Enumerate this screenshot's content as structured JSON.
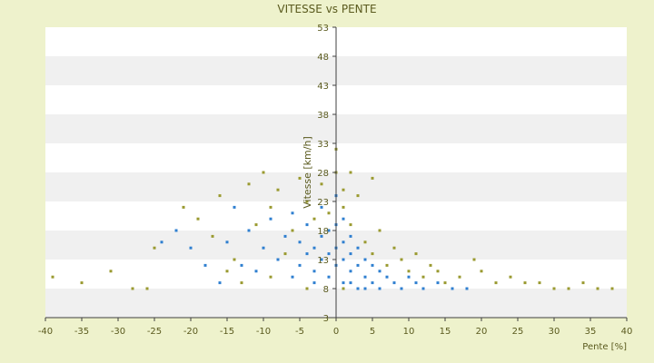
{
  "chart_data": {
    "type": "scatter",
    "title": "VITESSE vs PENTE",
    "xlabel": "Pente [%]",
    "ylabel": "Vitesse [km/h]",
    "xlim": [
      -40,
      40
    ],
    "ylim": [
      3,
      53
    ],
    "x_ticks": [
      "-40",
      "-35",
      "-30",
      "-25",
      "-20",
      "-15",
      "-10",
      "-5",
      "0",
      "5",
      "10",
      "15",
      "20",
      "25",
      "30",
      "35",
      "40"
    ],
    "y_ticks": [
      "3",
      "8",
      "13",
      "18",
      "23",
      "28",
      "33",
      "38",
      "43",
      "48",
      "53"
    ],
    "grid": "horizontal alternating bands",
    "colors": {
      "background": "#eef2cc",
      "plot_band_light": "#ffffff",
      "plot_band_dark": "#f0f0f0",
      "axis": "#404040",
      "series_a": "#2f7fd0",
      "series_b": "#9a9a30"
    },
    "series": [
      {
        "values": [
          [
            -15,
            16
          ],
          [
            -14,
            22
          ],
          [
            -12,
            18
          ],
          [
            -10,
            15
          ],
          [
            -9,
            20
          ],
          [
            -8,
            13
          ],
          [
            -7,
            17
          ],
          [
            -6,
            21
          ],
          [
            -5,
            12
          ],
          [
            -5,
            16
          ],
          [
            -4,
            14
          ],
          [
            -4,
            19
          ],
          [
            -3,
            11
          ],
          [
            -3,
            15
          ],
          [
            -2,
            13
          ],
          [
            -2,
            17
          ],
          [
            -2,
            22
          ],
          [
            -1,
            10
          ],
          [
            -1,
            14
          ],
          [
            -1,
            18
          ],
          [
            0,
            12
          ],
          [
            0,
            15
          ],
          [
            0,
            19
          ],
          [
            0,
            24
          ],
          [
            1,
            9
          ],
          [
            1,
            13
          ],
          [
            1,
            16
          ],
          [
            1,
            20
          ],
          [
            2,
            11
          ],
          [
            2,
            14
          ],
          [
            2,
            17
          ],
          [
            3,
            8
          ],
          [
            3,
            12
          ],
          [
            3,
            15
          ],
          [
            4,
            10
          ],
          [
            4,
            13
          ],
          [
            5,
            9
          ],
          [
            5,
            12
          ],
          [
            6,
            8
          ],
          [
            6,
            11
          ],
          [
            7,
            10
          ],
          [
            8,
            9
          ],
          [
            9,
            8
          ],
          [
            10,
            10
          ],
          [
            11,
            9
          ],
          [
            12,
            8
          ],
          [
            14,
            9
          ],
          [
            16,
            8
          ],
          [
            18,
            8
          ],
          [
            -18,
            12
          ],
          [
            -20,
            15
          ],
          [
            -22,
            18
          ],
          [
            -24,
            16
          ],
          [
            -11,
            11
          ],
          [
            -13,
            12
          ],
          [
            -16,
            9
          ],
          [
            -6,
            10
          ],
          [
            -3,
            9
          ],
          [
            2,
            9
          ],
          [
            4,
            8
          ]
        ]
      },
      {
        "values": [
          [
            -39,
            10
          ],
          [
            -35,
            9
          ],
          [
            -31,
            11
          ],
          [
            -28,
            8
          ],
          [
            -26,
            8
          ],
          [
            -25,
            15
          ],
          [
            -21,
            22
          ],
          [
            -19,
            20
          ],
          [
            -17,
            17
          ],
          [
            -16,
            24
          ],
          [
            -14,
            13
          ],
          [
            -12,
            26
          ],
          [
            -11,
            19
          ],
          [
            -10,
            28
          ],
          [
            -9,
            22
          ],
          [
            -8,
            25
          ],
          [
            -7,
            14
          ],
          [
            -6,
            18
          ],
          [
            -5,
            27
          ],
          [
            -4,
            23
          ],
          [
            -3,
            20
          ],
          [
            -2,
            26
          ],
          [
            -1,
            21
          ],
          [
            0,
            28
          ],
          [
            0,
            32
          ],
          [
            1,
            25
          ],
          [
            1,
            22
          ],
          [
            2,
            28
          ],
          [
            2,
            19
          ],
          [
            3,
            24
          ],
          [
            4,
            16
          ],
          [
            5,
            27
          ],
          [
            5,
            14
          ],
          [
            6,
            18
          ],
          [
            7,
            12
          ],
          [
            8,
            15
          ],
          [
            9,
            13
          ],
          [
            10,
            11
          ],
          [
            11,
            14
          ],
          [
            12,
            10
          ],
          [
            13,
            12
          ],
          [
            14,
            11
          ],
          [
            15,
            9
          ],
          [
            17,
            10
          ],
          [
            19,
            13
          ],
          [
            20,
            11
          ],
          [
            22,
            9
          ],
          [
            24,
            10
          ],
          [
            26,
            9
          ],
          [
            28,
            9
          ],
          [
            30,
            8
          ],
          [
            32,
            8
          ],
          [
            34,
            9
          ],
          [
            36,
            8
          ],
          [
            38,
            8
          ],
          [
            -15,
            11
          ],
          [
            -13,
            9
          ],
          [
            -9,
            10
          ],
          [
            -4,
            8
          ],
          [
            1,
            8
          ]
        ]
      }
    ]
  }
}
